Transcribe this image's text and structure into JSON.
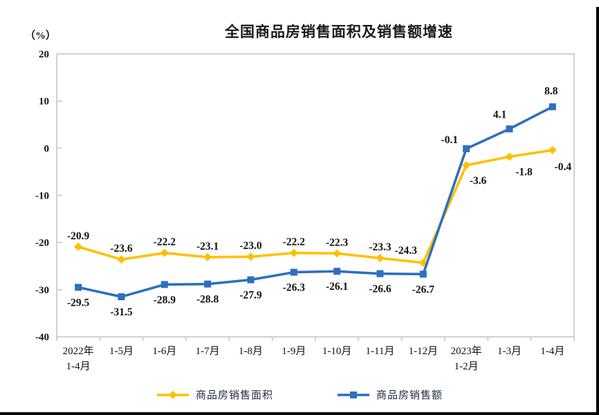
{
  "chart_data": {
    "type": "line",
    "title": "全国商品房销售面积及销售额增速",
    "unit_label": "（%）",
    "categories": [
      "2022年\n1-4月",
      "1-5月",
      "1-6月",
      "1-7月",
      "1-8月",
      "1-9月",
      "1-10月",
      "1-11月",
      "1-12月",
      "2023年\n1-2月",
      "1-3月",
      "1-4月"
    ],
    "series": [
      {
        "name": "商品房销售面积",
        "color": "#FFC000",
        "marker": "diamond",
        "values": [
          -20.9,
          -23.6,
          -22.2,
          -23.1,
          -23.0,
          -22.2,
          -22.3,
          -23.3,
          -24.3,
          -3.6,
          -1.8,
          -0.4
        ]
      },
      {
        "name": "商品房销售额",
        "color": "#2E6FBE",
        "marker": "square",
        "values": [
          -29.5,
          -31.5,
          -28.9,
          -28.8,
          -27.9,
          -26.3,
          -26.1,
          -26.6,
          -26.7,
          -0.1,
          4.1,
          8.8
        ]
      }
    ],
    "y_axis": {
      "min": -40,
      "max": 20,
      "step": 10,
      "tick_labels": [
        "20",
        "10",
        "0",
        "-10",
        "-20",
        "-30",
        "-40"
      ]
    },
    "xlabel": "",
    "ylabel": "（%）",
    "grid": false,
    "legend_position": "bottom",
    "axis_color": "#c9c9c9",
    "text_color": "#111111"
  }
}
